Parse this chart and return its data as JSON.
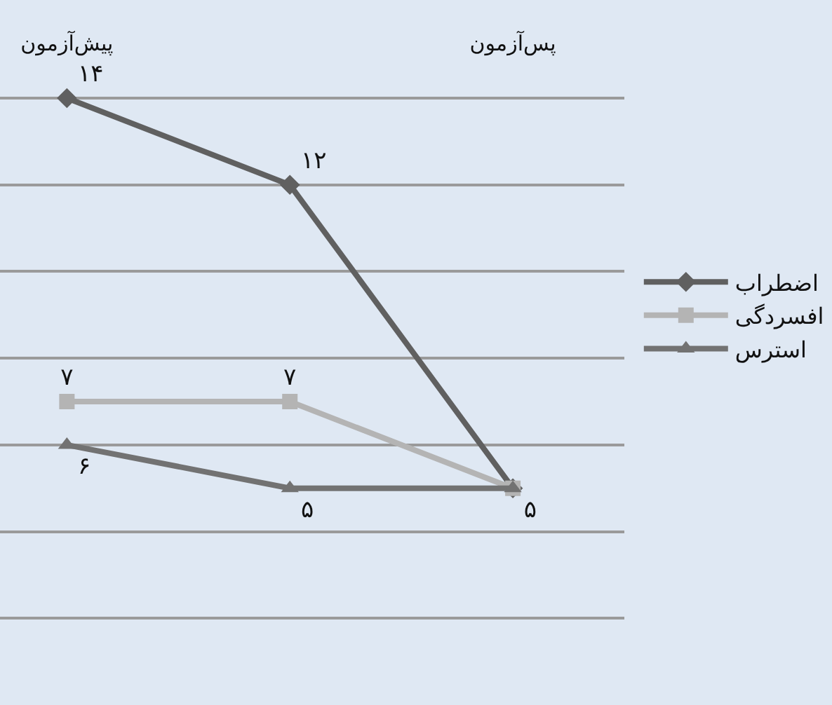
{
  "chart_data": {
    "type": "line",
    "categories": [
      "پیش‌آزمون",
      null,
      "پس‌آزمون"
    ],
    "series": [
      {
        "name": "اضطراب",
        "color": "#606060",
        "values": [
          14,
          12,
          5
        ],
        "marker": "diamond",
        "value_labels": [
          "۱۴",
          "۱۲",
          null
        ]
      },
      {
        "name": "افسردگی",
        "color": "#b4b4b4",
        "values": [
          7,
          7,
          5
        ],
        "marker": "square",
        "value_labels": [
          "۷",
          "۷",
          null
        ]
      },
      {
        "name": "استرس",
        "color": "#727272",
        "values": [
          6,
          5,
          5
        ],
        "marker": "triangle",
        "value_labels": [
          "۶",
          "۵",
          "۵"
        ]
      }
    ],
    "grid": "y",
    "legend": "right",
    "tick_labels": "x",
    "line_style": "solid"
  }
}
